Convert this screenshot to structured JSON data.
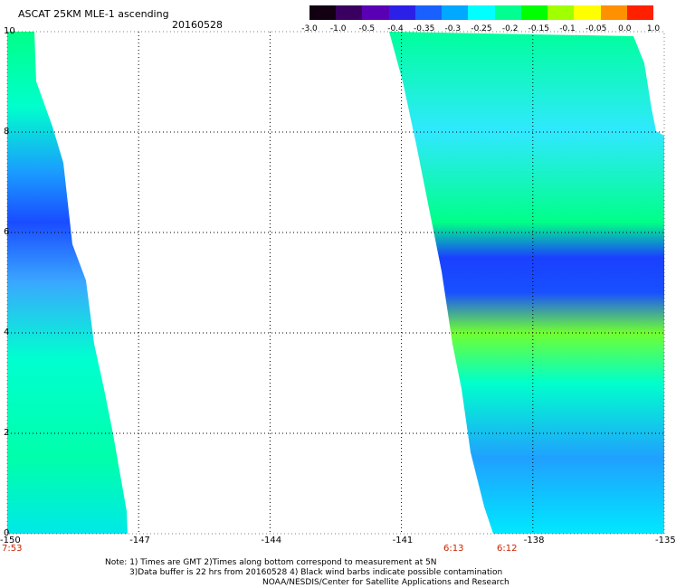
{
  "header": {
    "title": "ASCAT 25KM MLE-1 ascending",
    "date": "20160528"
  },
  "colorbar": {
    "labels": [
      "-3.0",
      "-1.0",
      "-0.5",
      "-0.4",
      "-0.35",
      "-0.3",
      "-0.25",
      "-0.2",
      "-0.15",
      "-0.1",
      "-0.05",
      "0.0",
      "1.0"
    ],
    "colors": [
      "#120012",
      "#3a0060",
      "#5a00b4",
      "#2a20e8",
      "#1a60ff",
      "#00a8ff",
      "#00ffff",
      "#00ff90",
      "#00ff00",
      "#a0ff00",
      "#ffff00",
      "#ff9000",
      "#ff2000"
    ]
  },
  "map": {
    "x_ticks": [
      "-150",
      "-147",
      "-144",
      "-141",
      "-138",
      "-135"
    ],
    "y_ticks": [
      "0",
      "2",
      "4",
      "6",
      "8",
      "10"
    ],
    "grid": true
  },
  "times": {
    "left": "7:53",
    "t1": "6:13",
    "t2": "6:12"
  },
  "notes": {
    "line1": "Note: 1) Times are GMT 2)Times along bottom correspond to measurement at 5N",
    "line2": "3)Data buffer is 22 hrs from 20160528 4) Black wind barbs indicate possible contamination",
    "line3": "NOAA/NESDIS/Center for Satellite Applications and Research"
  }
}
